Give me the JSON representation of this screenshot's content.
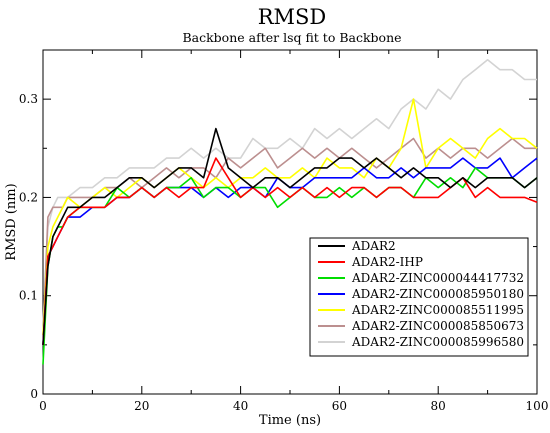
{
  "chart_data": {
    "type": "line",
    "title": "RMSD",
    "subtitle": "Backbone after lsq fit to Backbone",
    "xlabel": "Time (ns)",
    "ylabel": "RMSD (nm)",
    "xlim": [
      0,
      100
    ],
    "ylim": [
      0,
      0.35
    ],
    "xticks": [
      0,
      20,
      40,
      60,
      80,
      100
    ],
    "yticks": [
      0,
      0.1,
      0.2,
      0.3
    ],
    "x_tick_labels": [
      "0",
      "20",
      "40",
      "60",
      "80",
      "100"
    ],
    "y_tick_labels": [
      "0",
      "0.1",
      "0.2",
      "0.3"
    ],
    "grid": false,
    "legend_position": "bottom-right",
    "x": [
      0,
      1,
      2,
      3,
      4,
      5,
      7.5,
      10,
      12.5,
      15,
      17.5,
      20,
      22.5,
      25,
      27.5,
      30,
      32.5,
      35,
      37.5,
      40,
      42.5,
      45,
      47.5,
      50,
      52.5,
      55,
      57.5,
      60,
      62.5,
      65,
      67.5,
      70,
      72.5,
      75,
      77.5,
      80,
      82.5,
      85,
      87.5,
      90,
      92.5,
      95,
      97.5,
      100
    ],
    "series": [
      {
        "name": "ADAR2",
        "color": "#000000",
        "values": [
          0.05,
          0.13,
          0.16,
          0.17,
          0.18,
          0.19,
          0.19,
          0.2,
          0.2,
          0.21,
          0.22,
          0.22,
          0.21,
          0.22,
          0.23,
          0.23,
          0.22,
          0.27,
          0.23,
          0.22,
          0.21,
          0.22,
          0.22,
          0.21,
          0.22,
          0.23,
          0.23,
          0.24,
          0.24,
          0.23,
          0.24,
          0.23,
          0.22,
          0.23,
          0.22,
          0.22,
          0.21,
          0.22,
          0.21,
          0.22,
          0.22,
          0.22,
          0.21,
          0.22
        ]
      },
      {
        "name": "ADAR2-IHP",
        "color": "#ff0000",
        "values": [
          0.05,
          0.14,
          0.15,
          0.16,
          0.17,
          0.18,
          0.19,
          0.19,
          0.19,
          0.2,
          0.2,
          0.21,
          0.2,
          0.21,
          0.2,
          0.21,
          0.21,
          0.24,
          0.22,
          0.2,
          0.21,
          0.2,
          0.21,
          0.2,
          0.21,
          0.2,
          0.21,
          0.2,
          0.21,
          0.21,
          0.2,
          0.21,
          0.21,
          0.2,
          0.2,
          0.2,
          0.21,
          0.22,
          0.2,
          0.21,
          0.2,
          0.2,
          0.2,
          0.195
        ]
      },
      {
        "name": "ADAR2-ZINC000044417732",
        "color": "#00dd00",
        "values": [
          0.03,
          0.13,
          0.16,
          0.17,
          0.17,
          0.18,
          0.19,
          0.19,
          0.19,
          0.21,
          0.2,
          0.21,
          0.2,
          0.21,
          0.21,
          0.22,
          0.2,
          0.21,
          0.21,
          0.2,
          0.21,
          0.21,
          0.19,
          0.2,
          0.21,
          0.2,
          0.2,
          0.21,
          0.2,
          0.21,
          0.2,
          0.21,
          0.21,
          0.2,
          0.22,
          0.21,
          0.22,
          0.21,
          0.23,
          0.22,
          0.22,
          0.22,
          0.21,
          0.22
        ]
      },
      {
        "name": "ADAR2-ZINC000085950180",
        "color": "#0000ff",
        "values": [
          0.05,
          0.14,
          0.15,
          0.16,
          0.17,
          0.18,
          0.18,
          0.19,
          0.19,
          0.2,
          0.2,
          0.21,
          0.2,
          0.21,
          0.21,
          0.21,
          0.2,
          0.21,
          0.2,
          0.21,
          0.21,
          0.2,
          0.22,
          0.21,
          0.21,
          0.22,
          0.22,
          0.22,
          0.22,
          0.23,
          0.22,
          0.22,
          0.23,
          0.22,
          0.23,
          0.23,
          0.23,
          0.24,
          0.23,
          0.23,
          0.24,
          0.22,
          0.23,
          0.24
        ]
      },
      {
        "name": "ADAR2-ZINC000085511995",
        "color": "#ffff00",
        "values": [
          0.06,
          0.15,
          0.17,
          0.18,
          0.19,
          0.2,
          0.19,
          0.2,
          0.21,
          0.2,
          0.21,
          0.22,
          0.21,
          0.22,
          0.23,
          0.22,
          0.21,
          0.22,
          0.21,
          0.22,
          0.22,
          0.23,
          0.22,
          0.22,
          0.23,
          0.22,
          0.24,
          0.23,
          0.23,
          0.22,
          0.24,
          0.23,
          0.25,
          0.3,
          0.23,
          0.25,
          0.26,
          0.25,
          0.24,
          0.26,
          0.27,
          0.26,
          0.26,
          0.25
        ]
      },
      {
        "name": "ADAR2-ZINC000085850673",
        "color": "#bc8f8f",
        "values": [
          0.06,
          0.18,
          0.19,
          0.19,
          0.19,
          0.2,
          0.2,
          0.2,
          0.21,
          0.21,
          0.22,
          0.21,
          0.22,
          0.23,
          0.22,
          0.23,
          0.23,
          0.22,
          0.24,
          0.23,
          0.24,
          0.25,
          0.23,
          0.24,
          0.25,
          0.24,
          0.25,
          0.24,
          0.25,
          0.24,
          0.23,
          0.24,
          0.25,
          0.26,
          0.24,
          0.25,
          0.24,
          0.25,
          0.25,
          0.24,
          0.25,
          0.26,
          0.25,
          0.25
        ]
      },
      {
        "name": "ADAR2-ZINC000085996580",
        "color": "#d3d3d3",
        "values": [
          0.07,
          0.17,
          0.19,
          0.2,
          0.2,
          0.2,
          0.21,
          0.21,
          0.22,
          0.22,
          0.23,
          0.23,
          0.23,
          0.24,
          0.24,
          0.25,
          0.24,
          0.25,
          0.24,
          0.24,
          0.26,
          0.25,
          0.25,
          0.26,
          0.25,
          0.27,
          0.26,
          0.27,
          0.26,
          0.27,
          0.28,
          0.27,
          0.29,
          0.3,
          0.29,
          0.31,
          0.3,
          0.32,
          0.33,
          0.34,
          0.33,
          0.33,
          0.32,
          0.32
        ]
      }
    ]
  }
}
